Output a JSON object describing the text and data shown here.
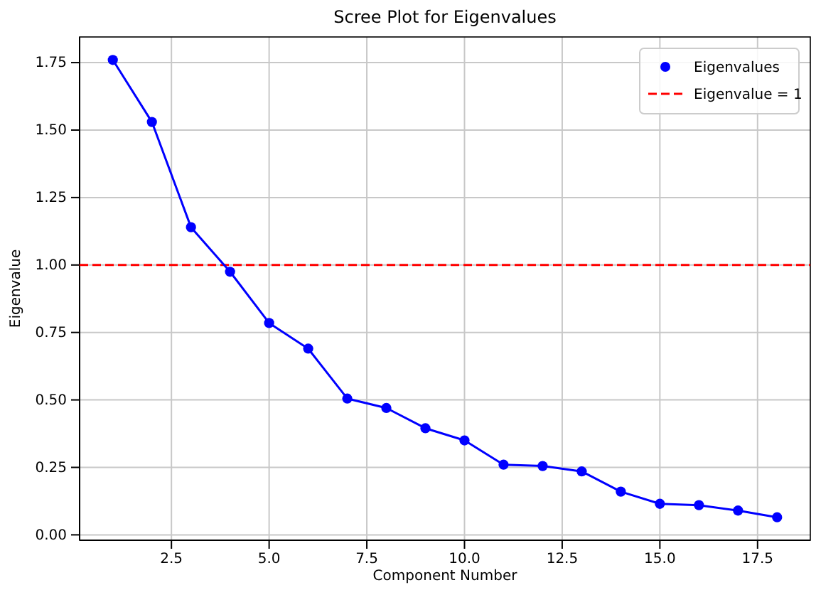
{
  "chart_data": {
    "type": "line",
    "title": "Scree Plot for Eigenvalues",
    "xlabel": "Component Number",
    "ylabel": "Eigenvalue",
    "x": [
      1,
      2,
      3,
      4,
      5,
      6,
      7,
      8,
      9,
      10,
      11,
      12,
      13,
      14,
      15,
      16,
      17,
      18
    ],
    "series": [
      {
        "name": "Eigenvalues",
        "color": "#0000ff",
        "values": [
          1.76,
          1.53,
          1.14,
          0.975,
          0.785,
          0.69,
          0.505,
          0.47,
          0.395,
          0.35,
          0.26,
          0.255,
          0.235,
          0.16,
          0.115,
          0.11,
          0.09,
          0.065
        ]
      }
    ],
    "marker": "circle",
    "line_style": "solid",
    "ref_lines": [
      {
        "axis": "y",
        "value": 1,
        "label": "Eigenvalue = 1",
        "color": "#ff0000",
        "line_style": "dashed"
      }
    ],
    "xlim": [
      0.15,
      18.85
    ],
    "xticks": [
      {
        "value": 2.5,
        "label": "2.5"
      },
      {
        "value": 5,
        "label": "5.0"
      },
      {
        "value": 7.5,
        "label": "7.5"
      },
      {
        "value": 10,
        "label": "10.0"
      },
      {
        "value": 12.5,
        "label": "12.5"
      },
      {
        "value": 15,
        "label": "15.0"
      },
      {
        "value": 17.5,
        "label": "17.5"
      }
    ],
    "ylim": [
      -0.02,
      1.845
    ],
    "yticks": [
      {
        "value": 0,
        "label": "0.00"
      },
      {
        "value": 0.25,
        "label": "0.25"
      },
      {
        "value": 0.5,
        "label": "0.50"
      },
      {
        "value": 0.75,
        "label": "0.75"
      },
      {
        "value": 1,
        "label": "1.00"
      },
      {
        "value": 1.25,
        "label": "1.25"
      },
      {
        "value": 1.5,
        "label": "1.50"
      },
      {
        "value": 1.75,
        "label": "1.75"
      }
    ],
    "grid": true,
    "legend": "top right"
  }
}
